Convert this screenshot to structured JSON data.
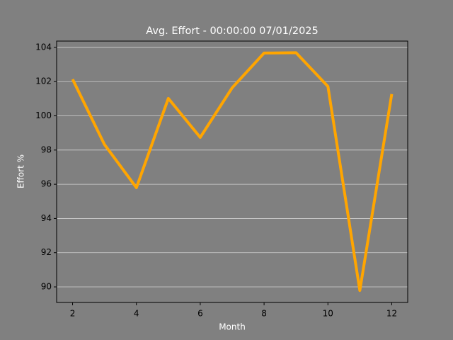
{
  "chart_data": {
    "type": "line",
    "title": "Avg. Effort - 00:00:00 07/01/2025",
    "x_label": "Month",
    "y_label": "Effort %",
    "x": [
      2,
      3,
      4,
      5,
      6,
      7,
      8,
      9,
      10,
      11,
      12
    ],
    "series": [
      {
        "name": "Avg. Effort",
        "color": "#ffa500",
        "values": [
          102.14,
          98.32,
          95.8,
          101.02,
          98.74,
          101.64,
          103.67,
          103.69,
          101.72,
          89.79,
          101.27
        ]
      }
    ],
    "xlim": [
      1.5,
      12.5
    ],
    "xticks": [
      2,
      4,
      6,
      8,
      10,
      12
    ],
    "ylim": [
      89.09,
      104.37
    ],
    "yticks": [
      90,
      92,
      94,
      96,
      98,
      100,
      102,
      104
    ],
    "grid": "y",
    "background": "#808080"
  }
}
